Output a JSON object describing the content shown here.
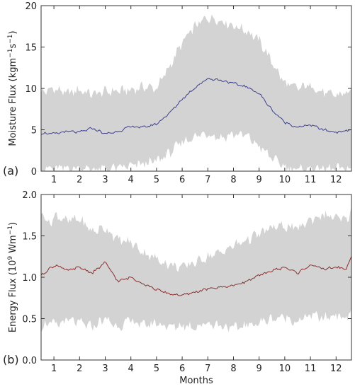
{
  "chart_data": [
    {
      "type": "area",
      "panel_label": "(a)",
      "ylabel_main": "Moisture Flux (kgm",
      "ylabel_sup1": "−1",
      "ylabel_mid": "s",
      "ylabel_sup2": "−1",
      "ylabel_end": ")",
      "xlabel": "",
      "xlim": [
        0.5,
        12.6
      ],
      "ylim": [
        0,
        20
      ],
      "yticks": [
        0,
        5,
        10,
        15,
        20
      ],
      "xticks": [
        1,
        2,
        3,
        4,
        5,
        6,
        7,
        8,
        9,
        10,
        11,
        12
      ],
      "grid": false,
      "line_color": "#3b3f8f",
      "band_color": "#d3d3d3",
      "x": [
        0.5,
        1,
        1.5,
        2,
        2.5,
        3,
        3.5,
        4,
        4.5,
        5,
        5.5,
        6,
        6.5,
        7,
        7.5,
        8,
        8.5,
        9,
        9.5,
        10,
        10.5,
        11,
        11.5,
        12,
        12.6
      ],
      "mean": [
        4.6,
        4.5,
        4.8,
        4.7,
        5.2,
        4.5,
        4.8,
        5.4,
        5.3,
        5.7,
        7.0,
        8.7,
        10.1,
        11.2,
        11.0,
        10.6,
        10.2,
        9.4,
        7.4,
        5.9,
        5.3,
        5.6,
        5.0,
        4.7,
        5.0
      ],
      "upper": [
        9.5,
        10.0,
        9.4,
        9.8,
        9.3,
        9.6,
        9.7,
        9.8,
        10.2,
        10.0,
        12.6,
        15.5,
        17.5,
        18.6,
        18.2,
        17.6,
        17.0,
        15.8,
        13.2,
        10.6,
        10.0,
        10.4,
        9.4,
        9.2,
        9.6
      ],
      "lower": [
        0.3,
        0.3,
        0.4,
        0.3,
        0.3,
        0.2,
        0.4,
        0.6,
        0.9,
        1.2,
        2.2,
        3.5,
        4.2,
        4.6,
        4.0,
        4.5,
        4.3,
        3.0,
        1.6,
        0.5,
        0.2,
        0.4,
        0.3,
        0.3,
        0.3
      ]
    },
    {
      "type": "area",
      "panel_label": "(b)",
      "ylabel_main": "Energy Flux (10",
      "ylabel_sup1": "9",
      "ylabel_mid": " Wm",
      "ylabel_sup2": "−1",
      "ylabel_end": ")",
      "xlabel": "Months",
      "xlim": [
        0.5,
        12.6
      ],
      "ylim": [
        0,
        2.0
      ],
      "yticks": [
        0.0,
        0.5,
        1.0,
        1.5,
        2.0
      ],
      "ytick_labels": [
        "0.0",
        "0.5",
        "1.0",
        "1.5",
        "2.0"
      ],
      "xticks": [
        1,
        2,
        3,
        4,
        5,
        6,
        7,
        8,
        9,
        10,
        11,
        12
      ],
      "grid": false,
      "line_color": "#8b2e2e",
      "band_color": "#d3d3d3",
      "x": [
        0.5,
        0.8,
        1.1,
        1.5,
        2,
        2.5,
        3,
        3.5,
        4,
        4.5,
        5,
        5.5,
        6,
        6.5,
        7,
        7.5,
        8,
        8.5,
        9,
        9.5,
        10,
        10.5,
        11,
        11.5,
        12,
        12.4,
        12.6
      ],
      "mean": [
        1.02,
        1.1,
        1.15,
        1.08,
        1.12,
        1.05,
        1.18,
        0.95,
        1.0,
        0.92,
        0.85,
        0.8,
        0.78,
        0.82,
        0.86,
        0.88,
        0.9,
        0.95,
        1.02,
        1.08,
        1.12,
        1.05,
        1.15,
        1.1,
        1.12,
        1.1,
        1.25
      ],
      "upper": [
        1.8,
        1.65,
        1.75,
        1.68,
        1.7,
        1.55,
        1.6,
        1.45,
        1.42,
        1.3,
        1.22,
        1.15,
        1.12,
        1.18,
        1.25,
        1.3,
        1.38,
        1.45,
        1.52,
        1.6,
        1.62,
        1.58,
        1.7,
        1.75,
        1.72,
        1.68,
        1.82
      ],
      "lower": [
        0.4,
        0.45,
        0.42,
        0.48,
        0.45,
        0.4,
        0.5,
        0.4,
        0.48,
        0.42,
        0.45,
        0.4,
        0.42,
        0.4,
        0.45,
        0.42,
        0.38,
        0.42,
        0.45,
        0.5,
        0.52,
        0.46,
        0.55,
        0.5,
        0.55,
        0.5,
        0.6
      ]
    }
  ]
}
